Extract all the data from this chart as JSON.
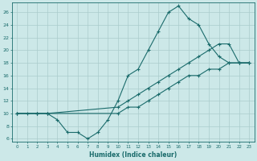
{
  "xlabel": "Humidex (Indice chaleur)",
  "bg_color": "#cce8e8",
  "grid_color": "#aacccc",
  "line_color": "#1a6b6b",
  "xlim": [
    -0.5,
    23.5
  ],
  "ylim": [
    5.5,
    27.5
  ],
  "xticks": [
    0,
    1,
    2,
    3,
    4,
    5,
    6,
    7,
    8,
    9,
    10,
    11,
    12,
    13,
    14,
    15,
    16,
    17,
    18,
    19,
    20,
    21,
    22,
    23
  ],
  "yticks": [
    6,
    8,
    10,
    12,
    14,
    16,
    18,
    20,
    22,
    24,
    26
  ],
  "curve1_x": [
    0,
    1,
    2,
    3,
    4,
    5,
    6,
    7,
    8,
    9,
    10,
    11,
    12,
    13,
    14,
    15,
    16,
    17,
    18,
    19,
    20,
    21,
    22,
    23
  ],
  "curve1_y": [
    10,
    10,
    10,
    10,
    9,
    7,
    7,
    6,
    7,
    9,
    12,
    16,
    17,
    20,
    23,
    26,
    27,
    25,
    24,
    21,
    19,
    18,
    18,
    18
  ],
  "curve2_x": [
    0,
    2,
    3,
    10,
    11,
    12,
    13,
    14,
    15,
    16,
    17,
    18,
    19,
    20,
    21,
    22,
    23
  ],
  "curve2_y": [
    10,
    10,
    10,
    11,
    12,
    13,
    14,
    15,
    16,
    17,
    18,
    19,
    20,
    21,
    21,
    18,
    18
  ],
  "curve3_x": [
    0,
    2,
    3,
    10,
    11,
    12,
    13,
    14,
    15,
    16,
    17,
    18,
    19,
    20,
    21,
    22,
    23
  ],
  "curve3_y": [
    10,
    10,
    10,
    10,
    11,
    11,
    12,
    13,
    14,
    15,
    16,
    16,
    17,
    17,
    18,
    18,
    18
  ]
}
